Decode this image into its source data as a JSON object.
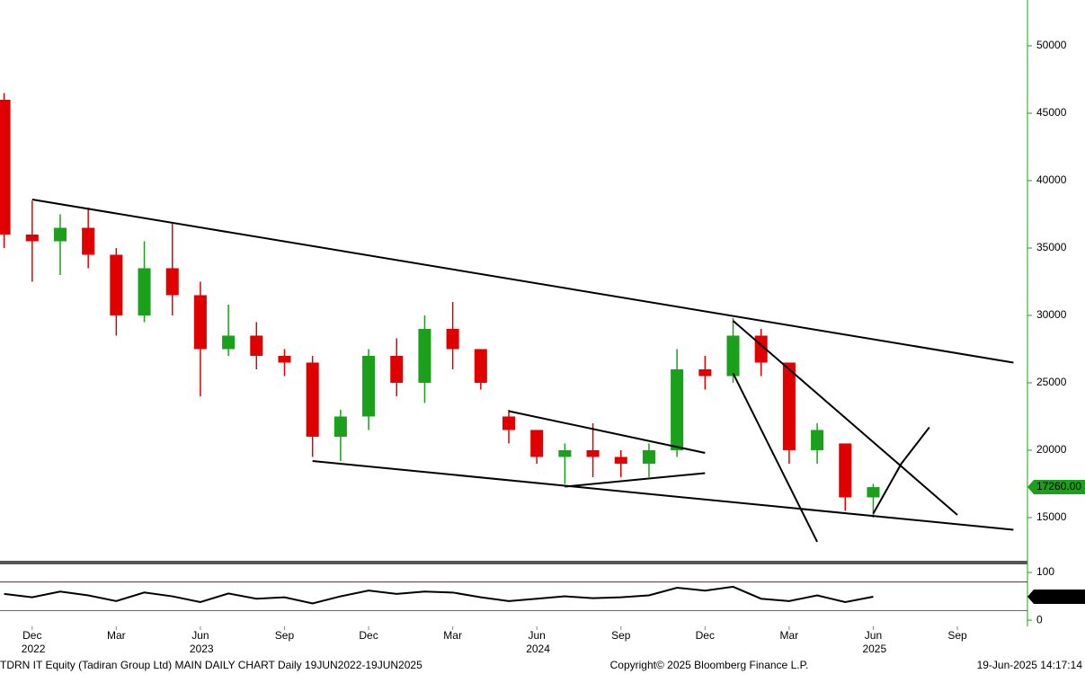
{
  "chart_data": [
    {
      "type": "candlestick",
      "x": [
        "2022-11",
        "2022-12",
        "2023-01",
        "2023-02",
        "2023-03",
        "2023-04",
        "2023-05",
        "2023-06",
        "2023-07",
        "2023-08",
        "2023-09",
        "2023-10",
        "2023-11",
        "2023-12",
        "2024-01",
        "2024-02",
        "2024-03",
        "2024-04",
        "2024-05",
        "2024-06",
        "2024-07",
        "2024-08",
        "2024-09",
        "2024-10",
        "2024-11",
        "2024-12",
        "2025-01",
        "2025-02",
        "2025-03",
        "2025-04",
        "2025-05",
        "2025-06"
      ],
      "open": [
        46000,
        36000,
        35500,
        36500,
        34500,
        30000,
        33500,
        31500,
        27500,
        28500,
        27000,
        26500,
        21000,
        22500,
        27000,
        25000,
        29000,
        27500,
        22500,
        21500,
        19500,
        20000,
        19500,
        19000,
        20000,
        26000,
        25500,
        28500,
        26500,
        20000,
        20500,
        16500
      ],
      "high": [
        46500,
        38500,
        37500,
        38000,
        35000,
        35500,
        36800,
        32500,
        30800,
        29500,
        27500,
        27000,
        23000,
        27500,
        28300,
        30000,
        31000,
        27500,
        23000,
        21500,
        20500,
        22000,
        20000,
        20500,
        27500,
        27000,
        29800,
        29000,
        26500,
        22000,
        20500,
        17500
      ],
      "low": [
        35000,
        32500,
        33000,
        33500,
        28500,
        29500,
        30000,
        24000,
        27000,
        26000,
        25500,
        19500,
        19200,
        21500,
        24000,
        23500,
        26000,
        24500,
        20500,
        19000,
        17500,
        18000,
        18000,
        18000,
        19500,
        24500,
        25000,
        25500,
        19000,
        19000,
        15500,
        15000
      ],
      "close": [
        36000,
        35500,
        36500,
        34500,
        30000,
        33500,
        31500,
        27500,
        28500,
        27000,
        26500,
        21000,
        22500,
        27000,
        25000,
        29000,
        27500,
        25000,
        21500,
        19500,
        20000,
        19500,
        19000,
        20000,
        26000,
        25500,
        28500,
        26500,
        20000,
        21500,
        16500,
        17260
      ],
      "up_color": "#1aa01a",
      "down_color": "#e00000",
      "last_price_label": "17260.00",
      "xlim": [
        "2022-11",
        "2025-11"
      ],
      "xticks": [
        {
          "value": "2022-12",
          "label": "Dec"
        },
        {
          "value": "2023-03",
          "label": "Mar"
        },
        {
          "value": "2023-06",
          "label": "Jun"
        },
        {
          "value": "2023-09",
          "label": "Sep"
        },
        {
          "value": "2023-12",
          "label": "Dec"
        },
        {
          "value": "2024-03",
          "label": "Mar"
        },
        {
          "value": "2024-06",
          "label": "Jun"
        },
        {
          "value": "2024-09",
          "label": "Sep"
        },
        {
          "value": "2024-12",
          "label": "Dec"
        },
        {
          "value": "2025-03",
          "label": "Mar"
        },
        {
          "value": "2025-06",
          "label": "Jun"
        },
        {
          "value": "2025-09",
          "label": "Sep"
        }
      ],
      "year_labels": [
        {
          "value": "2022-12",
          "label": "2022"
        },
        {
          "value": "2023-06",
          "label": "2023"
        },
        {
          "value": "2024-06",
          "label": "2024"
        },
        {
          "value": "2025-06",
          "label": "2025"
        }
      ],
      "ylim": [
        11730,
        53400
      ],
      "yticks": [
        15000,
        20000,
        25000,
        30000,
        35000,
        40000,
        45000,
        50000
      ],
      "trendlines": [
        {
          "x": [
            "2022-12",
            "2025-11"
          ],
          "y": [
            38600,
            26500
          ]
        },
        {
          "x": [
            "2023-10",
            "2025-11"
          ],
          "y": [
            19200,
            14100
          ]
        },
        {
          "x": [
            "2024-05",
            "2024-12"
          ],
          "y": [
            22900,
            19800
          ]
        },
        {
          "x": [
            "2024-07",
            "2024-12"
          ],
          "y": [
            17300,
            18300
          ]
        },
        {
          "x": [
            "2025-01",
            "2025-09"
          ],
          "y": [
            29600,
            15200
          ]
        },
        {
          "x": [
            "2025-01",
            "2025-04"
          ],
          "y": [
            25700,
            13200
          ]
        },
        {
          "x": [
            "2025-06",
            "2025-07",
            "2025-08"
          ],
          "y": [
            15300,
            19000,
            21700
          ]
        }
      ]
    },
    {
      "type": "line",
      "x": [
        "2022-11",
        "2022-12",
        "2023-01",
        "2023-02",
        "2023-03",
        "2023-04",
        "2023-05",
        "2023-06",
        "2023-07",
        "2023-08",
        "2023-09",
        "2023-10",
        "2023-11",
        "2023-12",
        "2024-01",
        "2024-02",
        "2024-03",
        "2024-04",
        "2024-05",
        "2024-06",
        "2024-07",
        "2024-08",
        "2024-09",
        "2024-10",
        "2024-11",
        "2024-12",
        "2025-01",
        "2025-02",
        "2025-03",
        "2025-04",
        "2025-05",
        "2025-06"
      ],
      "values": [
        55,
        48,
        60,
        52,
        40,
        58,
        50,
        38,
        56,
        45,
        48,
        35,
        50,
        62,
        55,
        60,
        58,
        48,
        40,
        45,
        50,
        46,
        48,
        52,
        68,
        62,
        70,
        45,
        40,
        52,
        38,
        49.2433
      ],
      "color": "#000000",
      "ylim": [
        -13,
        117
      ],
      "yticks": [
        0,
        100
      ],
      "levels": [
        {
          "value": 80,
          "color": "#c00000"
        },
        {
          "value": 20,
          "color": "#1aa01a"
        }
      ]
    }
  ],
  "footer": {
    "left": "TDRN IT Equity (Tadiran Group Ltd) MAIN DAILY CHART  Daily 19JUN2022-19JUN2025",
    "center": "Copyright© 2025 Bloomberg Finance L.P.",
    "right": "19-Jun-2025 14:17:14"
  }
}
